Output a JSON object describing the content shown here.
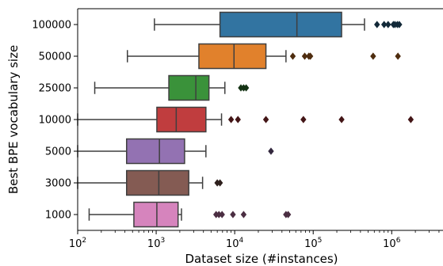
{
  "chart_data": {
    "type": "boxplot",
    "orientation": "horizontal",
    "title": "",
    "xlabel": "Dataset size (#instances)",
    "ylabel": "Best BPE vocabulary size",
    "x_scale": "log",
    "xlim": [
      100,
      4500000
    ],
    "x_ticks": [
      {
        "value": 100,
        "base": "10",
        "exp": "2"
      },
      {
        "value": 1000,
        "base": "10",
        "exp": "3"
      },
      {
        "value": 10000,
        "base": "10",
        "exp": "4"
      },
      {
        "value": 100000,
        "base": "10",
        "exp": "5"
      },
      {
        "value": 1000000,
        "base": "10",
        "exp": "6"
      }
    ],
    "categories": [
      "100000",
      "50000",
      "25000",
      "10000",
      "5000",
      "3000",
      "1000"
    ],
    "boxes": [
      {
        "category": "100000",
        "color": "#3274a1",
        "whisker_low": 950,
        "q1": 6500,
        "median": 62000,
        "q3": 230000,
        "whisker_high": 450000,
        "outliers": [
          650000,
          800000,
          900000,
          1050000,
          1100000,
          1180000,
          1250000
        ]
      },
      {
        "category": "50000",
        "color": "#e1812c",
        "whisker_low": 430,
        "q1": 3500,
        "median": 9800,
        "q3": 25000,
        "whisker_high": 45000,
        "outliers": [
          55000,
          78000,
          88000,
          92000,
          580000,
          1200000
        ]
      },
      {
        "category": "25000",
        "color": "#3a923a",
        "whisker_low": 165,
        "q1": 1450,
        "median": 3200,
        "q3": 4700,
        "whisker_high": 7500,
        "outliers": [
          12000,
          13000,
          14000
        ]
      },
      {
        "category": "10000",
        "color": "#c03d3e",
        "whisker_low": 100,
        "q1": 1020,
        "median": 1800,
        "q3": 4300,
        "whisker_high": 6800,
        "outliers": [
          9000,
          11000,
          25000,
          75000,
          230000,
          1750000
        ]
      },
      {
        "category": "5000",
        "color": "#9372b2",
        "whisker_low": 100,
        "q1": 420,
        "median": 1100,
        "q3": 2300,
        "whisker_high": 4300,
        "outliers": [
          29000
        ]
      },
      {
        "category": "3000",
        "color": "#845b53",
        "whisker_low": 100,
        "q1": 420,
        "median": 1080,
        "q3": 2600,
        "whisker_high": 3900,
        "outliers": [
          6000,
          6500
        ]
      },
      {
        "category": "1000",
        "color": "#d684bd",
        "whisker_low": 140,
        "q1": 520,
        "median": 1020,
        "q3": 1900,
        "whisker_high": 2100,
        "outliers": [
          5800,
          6300,
          6900,
          9500,
          13000,
          45000,
          48000
        ]
      }
    ],
    "grid": false,
    "legend": "none"
  }
}
